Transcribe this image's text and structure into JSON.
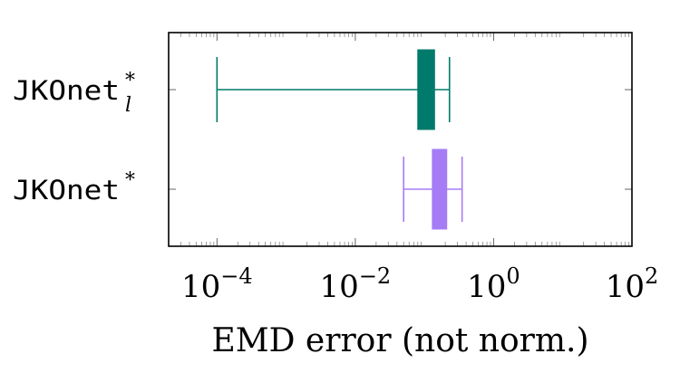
{
  "chart_data": {
    "type": "boxplot",
    "orientation": "horizontal",
    "xscale": "log",
    "xlim": [
      2e-05,
      100
    ],
    "xlabel": "EMD error (not norm.)",
    "ylabel": "",
    "title": "",
    "grid": false,
    "xticks": [
      {
        "value": 0.0001,
        "base": "10",
        "exp": "−4"
      },
      {
        "value": 0.01,
        "base": "10",
        "exp": "−2"
      },
      {
        "value": 1,
        "base": "10",
        "exp": "0"
      },
      {
        "value": 100,
        "base": "10",
        "exp": "2"
      }
    ],
    "categories": [
      {
        "base": "JKOnet",
        "sup": "*",
        "sub": "l"
      },
      {
        "base": "JKOnet",
        "sup": "*",
        "sub": ""
      }
    ],
    "series": [
      {
        "category_index": 0,
        "color": "#007a6b",
        "whisker_low": 0.0001,
        "q1": 0.08,
        "median": 0.1,
        "q3": 0.14,
        "whisker_high": 0.23
      },
      {
        "category_index": 1,
        "color": "#a57cf5",
        "whisker_low": 0.05,
        "q1": 0.13,
        "median": 0.16,
        "q3": 0.21,
        "whisker_high": 0.35
      }
    ]
  }
}
